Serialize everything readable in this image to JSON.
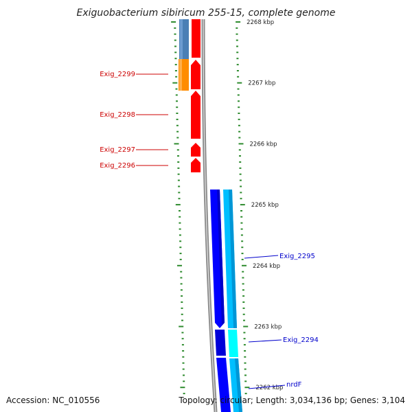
{
  "title": "Exiguobacterium sibiricum 255-15, complete genome",
  "footer": {
    "accession": "Accession: NC_010556",
    "topology": "Topology: circular; Length: 3,034,136 bp; Genes: 3,104"
  },
  "ticks": [
    {
      "label": "2268 kbp",
      "pos": 2268
    },
    {
      "label": "2267 kbp",
      "pos": 2267
    },
    {
      "label": "2266 kbp",
      "pos": 2266
    },
    {
      "label": "2265 kbp",
      "pos": 2265
    },
    {
      "label": "2264 kbp",
      "pos": 2264
    },
    {
      "label": "2263 kbp",
      "pos": 2263
    },
    {
      "label": "2262 kbp",
      "pos": 2262
    }
  ],
  "genes_left": [
    {
      "label": "Exig_2299",
      "start": 2266.9,
      "end": 2267.4
    },
    {
      "label": "Exig_2298",
      "start": 2266.3,
      "end": 2266.9
    },
    {
      "label": "Exig_2297",
      "start": 2266.05,
      "end": 2266.25
    },
    {
      "label": "Exig_2296",
      "start": 2265.8,
      "end": 2266.0
    }
  ],
  "genes_right": [
    {
      "label": "Exig_2295",
      "start": 2262.9,
      "end": 2265.25
    },
    {
      "label": "Exig_2294",
      "start": 2262.5,
      "end": 2262.9
    },
    {
      "label": "nrdF",
      "start": 2261.6,
      "end": 2262.5
    }
  ],
  "colors": {
    "tick_green": "#2e8b2e",
    "backbone": "#8a8a8a",
    "red": "#ff0000",
    "orange": "#ff8c00",
    "steel_blue": "#4a7fb5",
    "blue": "#0000ff",
    "cyan": "#00bfff",
    "bright_cyan": "#00ffff",
    "label_red": "#cc0000",
    "label_blue": "#0000cc"
  }
}
